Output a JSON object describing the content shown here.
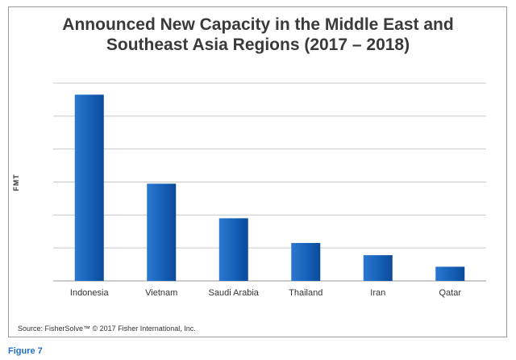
{
  "chart_data": {
    "type": "bar",
    "title_lines": [
      "Announced New Capacity in the Middle East and",
      "Southeast Asia Regions (2017 – 2018)"
    ],
    "ylabel": "FMT",
    "xlabel": "",
    "categories": [
      "Indonesia",
      "Vietnam",
      "Saudi Arabia",
      "Thailand",
      "Iran",
      "Qatar"
    ],
    "values": [
      5.65,
      2.95,
      1.9,
      1.15,
      0.78,
      0.43
    ],
    "ylim": [
      0,
      6
    ],
    "grid": true,
    "bar_color": "#1560b8"
  },
  "footer": {
    "source": "Source: FisherSolve™ © 2017 Fisher International, Inc.",
    "figure_label": "Figure 7"
  }
}
